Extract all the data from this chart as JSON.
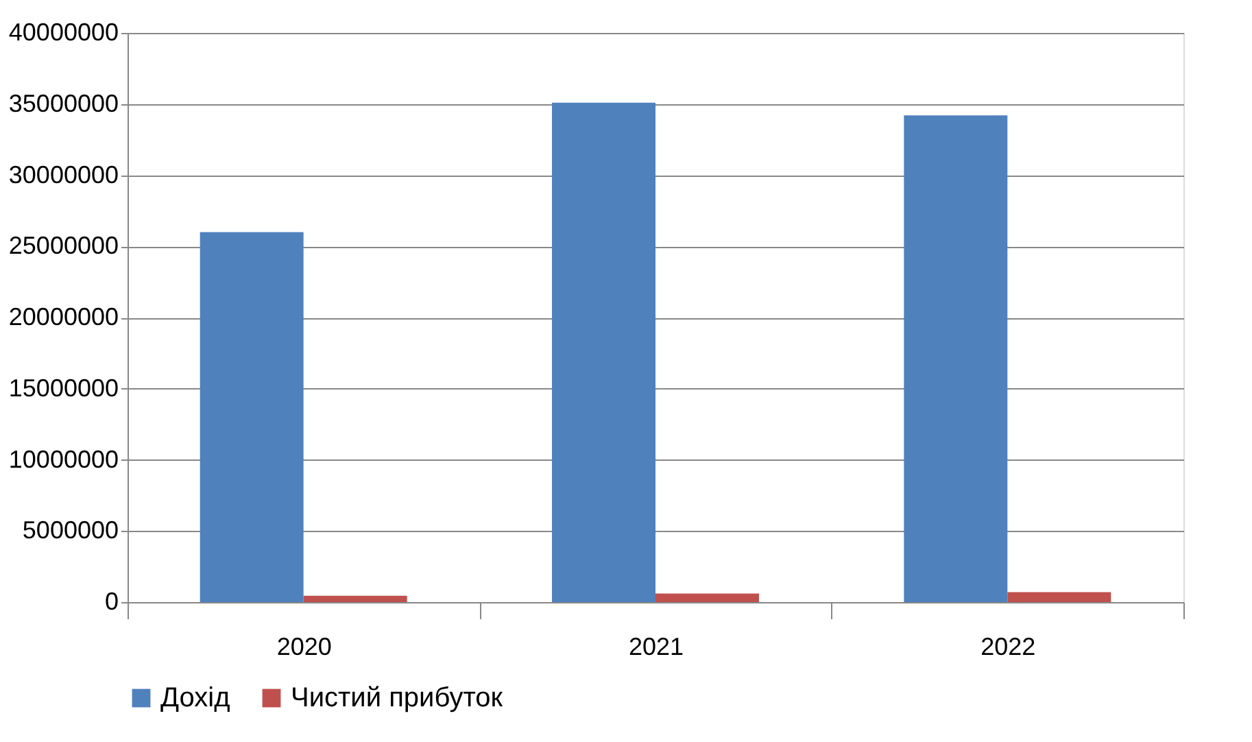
{
  "chart_data": {
    "type": "bar",
    "categories": [
      "2020",
      "2021",
      "2022"
    ],
    "series": [
      {
        "name": "Дохід",
        "color": "#4f81bd",
        "values": [
          26000000,
          35100000,
          34200000
        ]
      },
      {
        "name": "Чистий прибуток",
        "color": "#c0504d",
        "values": [
          450000,
          600000,
          700000
        ]
      }
    ],
    "ylim": [
      0,
      40000000
    ],
    "yticks": [
      0,
      5000000,
      10000000,
      15000000,
      20000000,
      25000000,
      30000000,
      35000000,
      40000000
    ],
    "grid": "y",
    "legend": "bottom"
  }
}
